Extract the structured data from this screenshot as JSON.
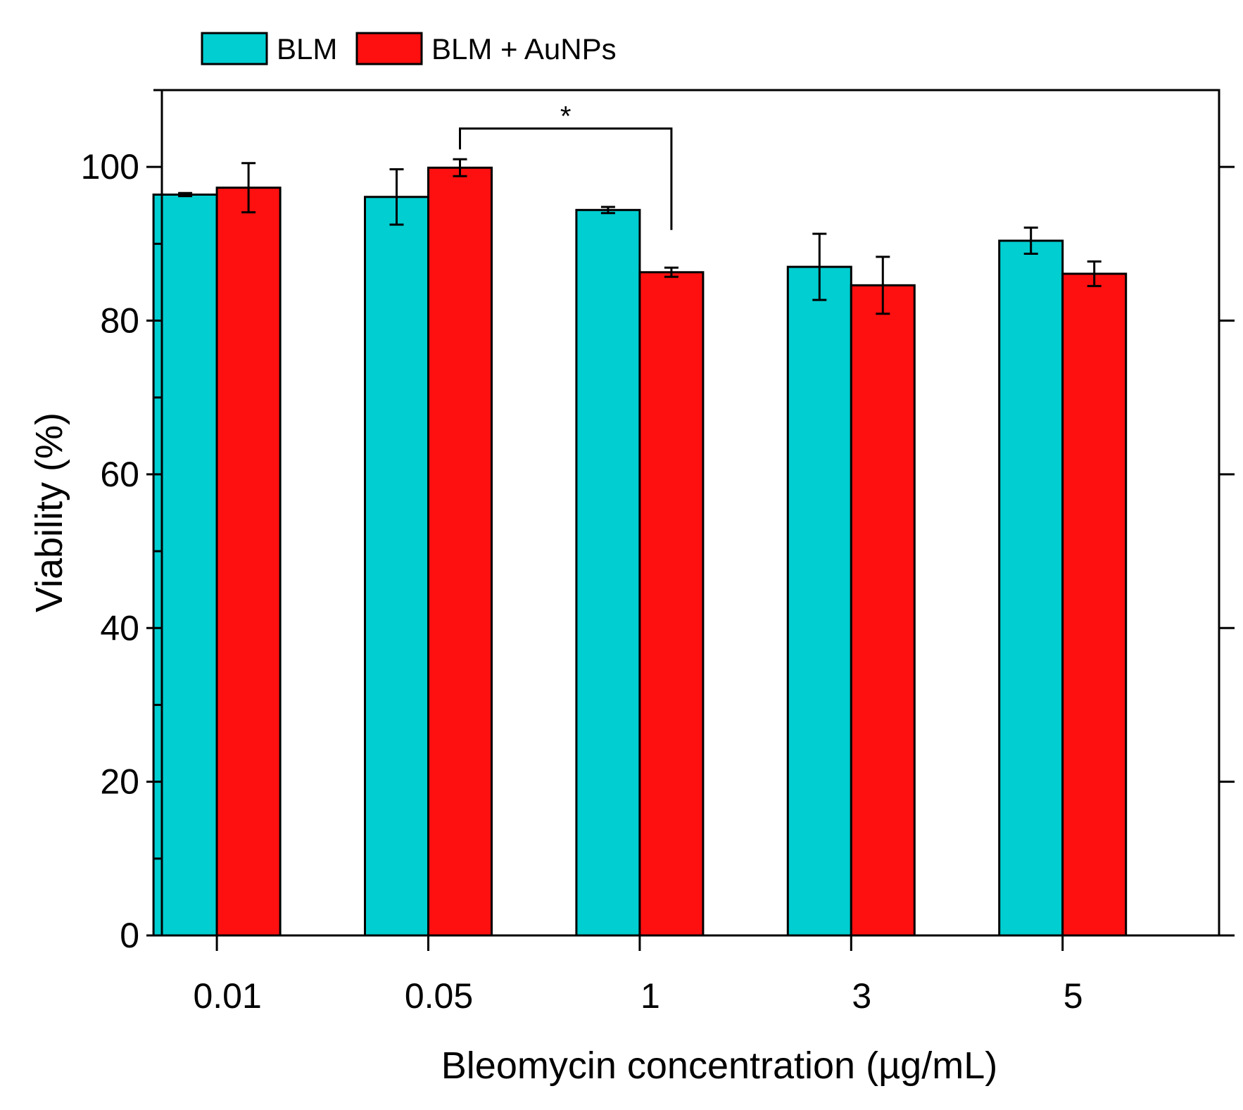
{
  "chart_data": {
    "type": "bar",
    "title": "",
    "xlabel": "Bleomycin concentration (µg/mL)",
    "ylabel": "Viability (%)",
    "ylim": [
      0,
      110
    ],
    "yticks": [
      0,
      20,
      40,
      60,
      80,
      100
    ],
    "categories": [
      "0.01",
      "0.05",
      "1",
      "3",
      "5"
    ],
    "series": [
      {
        "name": "BLM",
        "color": "#00CED1",
        "values": [
          96.4,
          96.1,
          94.4,
          87.0,
          90.4
        ],
        "errors": [
          0.2,
          3.6,
          0.4,
          4.3,
          1.7
        ]
      },
      {
        "name": "BLM + AuNPs",
        "color": "#FF1010",
        "values": [
          97.3,
          99.9,
          86.3,
          84.6,
          86.1
        ],
        "errors": [
          3.2,
          1.1,
          0.6,
          3.7,
          1.6
        ]
      }
    ],
    "legend_position": "top-left",
    "annotations": [
      {
        "text": "*",
        "from": {
          "category": "0.05",
          "series": "BLM + AuNPs"
        },
        "to": {
          "category": "1",
          "series": "BLM + AuNPs"
        },
        "bracket_level": 105
      }
    ]
  }
}
